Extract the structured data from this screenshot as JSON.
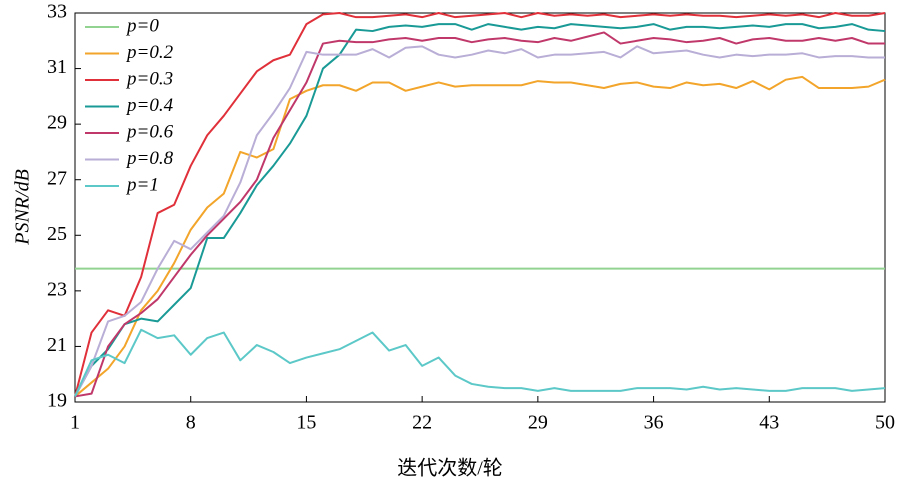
{
  "chart_data": {
    "type": "line",
    "x_label": "迭代次数/轮",
    "y_label": "PSNR/dB",
    "x": [
      1,
      2,
      3,
      4,
      5,
      6,
      7,
      8,
      9,
      10,
      11,
      12,
      13,
      14,
      15,
      16,
      17,
      18,
      19,
      20,
      21,
      22,
      23,
      24,
      25,
      26,
      27,
      28,
      29,
      30,
      31,
      32,
      33,
      34,
      35,
      36,
      37,
      38,
      39,
      40,
      41,
      42,
      43,
      44,
      45,
      46,
      47,
      48,
      49,
      50
    ],
    "xlim": [
      1,
      50
    ],
    "xticks": [
      1,
      8,
      15,
      22,
      29,
      36,
      43,
      50
    ],
    "ylim": [
      19,
      33
    ],
    "yticks": [
      19,
      21,
      23,
      25,
      27,
      29,
      31,
      33
    ],
    "grid": false,
    "legend": "upper left",
    "series": [
      {
        "name": "p=0",
        "color": "#92d392",
        "values": [
          23.8,
          23.8,
          23.8,
          23.8,
          23.8,
          23.8,
          23.8,
          23.8,
          23.8,
          23.8,
          23.8,
          23.8,
          23.8,
          23.8,
          23.8,
          23.8,
          23.8,
          23.8,
          23.8,
          23.8,
          23.8,
          23.8,
          23.8,
          23.8,
          23.8,
          23.8,
          23.8,
          23.8,
          23.8,
          23.8,
          23.8,
          23.8,
          23.8,
          23.8,
          23.8,
          23.8,
          23.8,
          23.8,
          23.8,
          23.8,
          23.8,
          23.8,
          23.8,
          23.8,
          23.8,
          23.8,
          23.8,
          23.8,
          23.8,
          23.8
        ]
      },
      {
        "name": "p=0.2",
        "color": "#f2a52a",
        "values": [
          19.2,
          19.7,
          20.2,
          21.0,
          22.3,
          23.0,
          24.0,
          25.2,
          26.0,
          26.5,
          28.0,
          27.8,
          28.1,
          29.9,
          30.2,
          30.4,
          30.4,
          30.2,
          30.5,
          30.5,
          30.2,
          30.35,
          30.5,
          30.35,
          30.4,
          30.4,
          30.4,
          30.4,
          30.55,
          30.5,
          30.5,
          30.4,
          30.3,
          30.45,
          30.5,
          30.35,
          30.3,
          30.5,
          30.4,
          30.45,
          30.3,
          30.55,
          30.25,
          30.6,
          30.7,
          30.3,
          30.3,
          30.3,
          30.35,
          30.6
        ]
      },
      {
        "name": "p=0.3",
        "color": "#e0303a",
        "values": [
          19.2,
          21.5,
          22.3,
          22.1,
          23.5,
          25.8,
          26.1,
          27.5,
          28.6,
          29.3,
          30.1,
          30.9,
          31.3,
          31.5,
          32.6,
          32.95,
          33.0,
          32.85,
          32.85,
          32.9,
          32.95,
          32.85,
          33.0,
          32.85,
          32.9,
          32.95,
          33.0,
          32.85,
          33.0,
          32.9,
          32.95,
          32.9,
          32.95,
          32.85,
          32.9,
          32.95,
          32.9,
          32.95,
          32.9,
          32.9,
          32.85,
          32.9,
          32.95,
          32.9,
          32.95,
          32.85,
          33.0,
          32.9,
          32.9,
          33.0
        ]
      },
      {
        "name": "p=0.4",
        "color": "#1a9a96",
        "values": [
          19.2,
          20.3,
          20.9,
          21.8,
          22.0,
          21.9,
          22.5,
          23.1,
          24.9,
          24.9,
          25.8,
          26.8,
          27.5,
          28.3,
          29.3,
          31.0,
          31.5,
          32.4,
          32.35,
          32.5,
          32.55,
          32.5,
          32.6,
          32.6,
          32.4,
          32.6,
          32.5,
          32.4,
          32.5,
          32.45,
          32.6,
          32.55,
          32.5,
          32.45,
          32.5,
          32.6,
          32.4,
          32.5,
          32.5,
          32.45,
          32.5,
          32.55,
          32.5,
          32.6,
          32.6,
          32.45,
          32.5,
          32.6,
          32.4,
          32.35
        ]
      },
      {
        "name": "p=0.6",
        "color": "#c0386a",
        "values": [
          19.2,
          19.3,
          21.0,
          21.8,
          22.2,
          22.7,
          23.5,
          24.3,
          25.0,
          25.6,
          26.2,
          27.0,
          28.5,
          29.5,
          30.5,
          31.9,
          32.0,
          31.95,
          31.95,
          32.05,
          32.1,
          32.0,
          32.1,
          32.1,
          31.95,
          32.05,
          32.1,
          32.0,
          31.95,
          32.1,
          32.0,
          32.15,
          32.3,
          31.9,
          32.0,
          32.1,
          32.05,
          31.95,
          32.0,
          32.1,
          31.9,
          32.05,
          32.1,
          32.0,
          32.0,
          32.1,
          32.0,
          32.1,
          31.9,
          31.9
        ]
      },
      {
        "name": "p=0.8",
        "color": "#b9aed6",
        "values": [
          19.2,
          20.3,
          21.9,
          22.1,
          22.6,
          23.8,
          24.8,
          24.5,
          25.1,
          25.7,
          26.9,
          28.6,
          29.4,
          30.3,
          31.6,
          31.5,
          31.5,
          31.5,
          31.7,
          31.4,
          31.75,
          31.8,
          31.5,
          31.4,
          31.5,
          31.65,
          31.55,
          31.7,
          31.4,
          31.5,
          31.5,
          31.55,
          31.6,
          31.4,
          31.8,
          31.55,
          31.6,
          31.65,
          31.5,
          31.4,
          31.5,
          31.45,
          31.5,
          31.5,
          31.55,
          31.4,
          31.45,
          31.45,
          31.4,
          31.4
        ]
      },
      {
        "name": "p=1",
        "color": "#5cc8c8",
        "values": [
          19.2,
          20.5,
          20.7,
          20.4,
          21.6,
          21.3,
          21.4,
          20.7,
          21.3,
          21.5,
          20.5,
          21.05,
          20.8,
          20.4,
          20.6,
          20.75,
          20.9,
          21.2,
          21.5,
          20.85,
          21.05,
          20.3,
          20.6,
          19.95,
          19.65,
          19.55,
          19.5,
          19.5,
          19.4,
          19.5,
          19.4,
          19.4,
          19.4,
          19.4,
          19.5,
          19.5,
          19.5,
          19.45,
          19.55,
          19.45,
          19.5,
          19.45,
          19.4,
          19.4,
          19.5,
          19.5,
          19.5,
          19.4,
          19.45,
          19.5
        ]
      }
    ]
  }
}
